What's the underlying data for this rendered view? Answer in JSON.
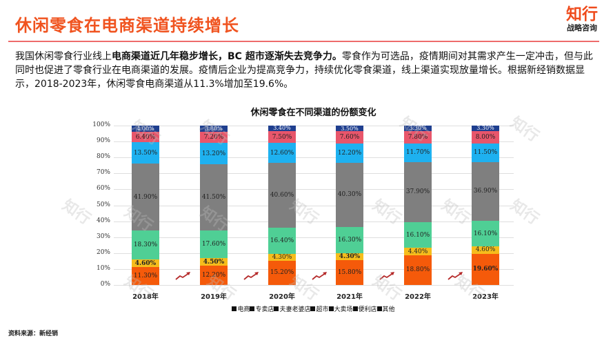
{
  "header": {
    "title": "休闲零食在电商渠道持续增长",
    "brand_name": "知行",
    "brand_sub": "战略咨询"
  },
  "paragraph": {
    "part1": "我国休闲零食行业线上",
    "bold": "电商渠道近几年稳步增长，BC 超市逐渐失去竞争力。",
    "part2": "零食作为可选品，疫情期间对其需求产生一定冲击，但与此同时也促进了零食行业在电商渠道的发展。疫情后企业为提高竞争力，持续优化零食渠道，线上渠道实现放量增长。根据新经销数据显示，2018-2023年，休闲零食电商渠道从11.3%增加至19.6%。"
  },
  "footer": {
    "source": "资料来源：新经销"
  },
  "colors": {
    "title": "#f0531f",
    "电商": "#f55a0a",
    "专卖店": "#f6bd1c",
    "夫妻老婆店": "#4fcf95",
    "超市": "#7f7f7f",
    "大卖场": "#1eb1f0",
    "便利店": "#e8566b",
    "其他": "#1f3f8f"
  },
  "chart_data": {
    "type": "bar",
    "stacked": true,
    "percent": true,
    "title": "休闲零食在不同渠道的份额变化",
    "xlabel": "",
    "ylabel": "",
    "ylim": [
      0,
      100
    ],
    "yticks": [
      "0%",
      "10%",
      "20%",
      "30%",
      "40%",
      "50%",
      "60%",
      "70%",
      "80%",
      "90%",
      "100%"
    ],
    "grid": true,
    "legend_position": "bottom",
    "categories": [
      "2018年",
      "2019年",
      "2020年",
      "2021年",
      "2022年",
      "2023年"
    ],
    "series": [
      {
        "name": "电商",
        "values": [
          11.3,
          12.2,
          15.2,
          15.8,
          18.8,
          19.6
        ],
        "labels": [
          "11.30%",
          "12.20%",
          "15.20%",
          "15.80%",
          "18.80%",
          "19.60%"
        ]
      },
      {
        "name": "专卖店",
        "values": [
          4.6,
          4.5,
          4.3,
          4.3,
          4.4,
          4.6
        ],
        "labels": [
          "4.60%",
          "4.50%",
          "4.30%",
          "4.30%",
          "4.40%",
          "4.60%"
        ]
      },
      {
        "name": "夫妻老婆店",
        "values": [
          18.3,
          17.6,
          16.4,
          16.3,
          16.1,
          16.1
        ],
        "labels": [
          "18.30%",
          "17.60%",
          "16.40%",
          "16.30%",
          "16.10%",
          "16.10%"
        ]
      },
      {
        "name": "超市",
        "values": [
          41.9,
          41.5,
          40.6,
          40.3,
          37.9,
          36.9
        ],
        "labels": [
          "41.90%",
          "41.50%",
          "40.60%",
          "40.30%",
          "37.90%",
          "36.90%"
        ]
      },
      {
        "name": "大卖场",
        "values": [
          13.5,
          13.2,
          12.6,
          12.2,
          11.7,
          11.5
        ],
        "labels": [
          "13.50%",
          "13.20%",
          "12.60%",
          "12.20%",
          "11.70%",
          "11.50%"
        ]
      },
      {
        "name": "便利店",
        "values": [
          6.4,
          7.2,
          7.5,
          7.6,
          7.8,
          8.0
        ],
        "labels": [
          "6.40%",
          "7.20%",
          "7.50%",
          "7.60%",
          "7.80%",
          "8.00%"
        ]
      },
      {
        "name": "其他",
        "values": [
          4.0,
          3.8,
          3.4,
          3.5,
          3.3,
          3.3
        ],
        "labels": [
          "4.00%",
          "3.80%",
          "3.40%",
          "3.50%",
          "3.30%",
          "3.30%"
        ]
      }
    ],
    "legend": [
      "电商",
      "专卖店",
      "夫妻老婆店",
      "超市",
      "大卖场",
      "便利店",
      "其他"
    ]
  }
}
